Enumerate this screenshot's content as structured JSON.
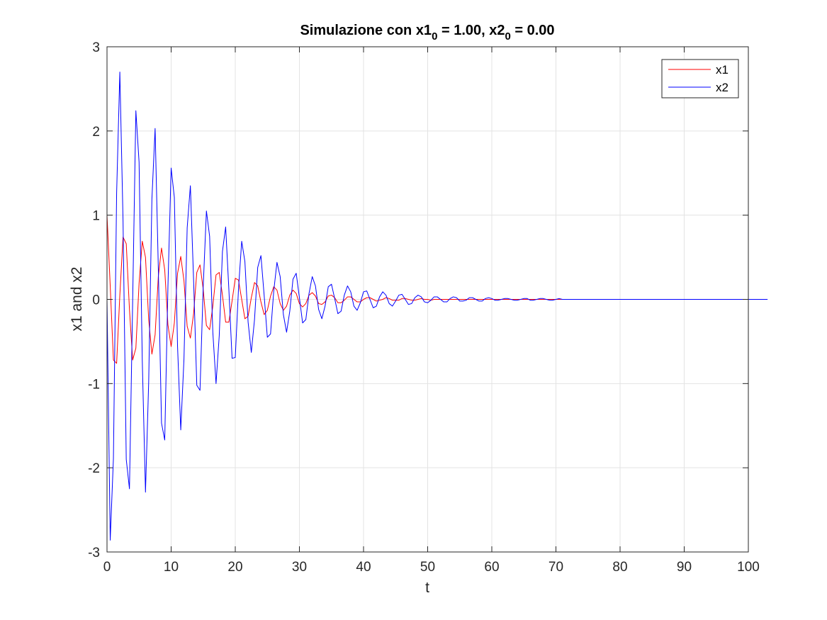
{
  "chart_data": {
    "type": "line",
    "title": {
      "prefix": "Simulazione con x1",
      "sub1": "0",
      "middle": " = 1.00, x2",
      "sub2": "0",
      "suffix": " = 0.00"
    },
    "xlabel": "t",
    "ylabel": "x1 and x2",
    "xlim": [
      0,
      100
    ],
    "ylim": [
      -3,
      3
    ],
    "xticks": [
      0,
      10,
      20,
      30,
      40,
      50,
      60,
      70,
      80,
      90,
      100
    ],
    "yticks": [
      -3,
      -2,
      -1,
      0,
      1,
      2,
      3
    ],
    "grid": true,
    "legend_position": "top-right",
    "x_sampling": {
      "start": 0,
      "end": 100,
      "step": 0.5
    },
    "series": [
      {
        "name": "x1",
        "color": "#ff0000",
        "values": [
          1.0,
          0.16,
          -0.72,
          -0.76,
          0.05,
          0.74,
          0.66,
          -0.12,
          -0.72,
          -0.58,
          0.19,
          0.69,
          0.5,
          -0.24,
          -0.65,
          -0.42,
          0.27,
          0.61,
          0.35,
          -0.3,
          -0.56,
          -0.28,
          0.31,
          0.51,
          0.22,
          -0.32,
          -0.46,
          -0.17,
          0.32,
          0.41,
          0.12,
          -0.31,
          -0.36,
          -0.08,
          0.29,
          0.32,
          0.05,
          -0.27,
          -0.27,
          -0.02,
          0.25,
          0.23,
          -0.0,
          -0.23,
          -0.2,
          0.02,
          0.2,
          0.16,
          -0.03,
          -0.18,
          -0.13,
          0.04,
          0.15,
          0.11,
          -0.05,
          -0.13,
          -0.08,
          0.05,
          0.11,
          0.07,
          -0.05,
          -0.09,
          -0.05,
          0.05,
          0.08,
          0.04,
          -0.05,
          -0.06,
          -0.03,
          0.04,
          0.05,
          0.02,
          -0.04,
          -0.04,
          -0.01,
          0.03,
          0.03,
          0.0,
          -0.03,
          -0.03,
          -0.0,
          0.02,
          0.02,
          0.0,
          -0.02,
          -0.01,
          0.0,
          0.02,
          0.01,
          -0.01,
          -0.01,
          -0.01,
          0.01,
          0.01,
          0.0,
          -0.01,
          -0.01,
          -0.0,
          0.01,
          0.0,
          -0.0,
          -0.01,
          -0.0,
          0.0,
          0.0,
          0.0,
          -0.0,
          -0.0,
          -0.0,
          0.0,
          0.0,
          0.0,
          -0.0,
          -0.0,
          0.0,
          0.0,
          0.0,
          -0.0,
          -0.0,
          -0.0,
          0.0,
          0.0,
          0.0,
          -0.0,
          -0.0,
          -0.0,
          0.0,
          0.0,
          -0.0,
          -0.0,
          -0.0,
          0.0,
          0.0,
          0.0,
          -0.0,
          -0.0,
          -0.0,
          0.0,
          0.0,
          -0.0,
          -0.0,
          -0.0,
          0.0,
          0.0,
          0.0,
          -0.0,
          -0.0,
          -0.0,
          0.0,
          0.0,
          -0.0,
          -0.0,
          -0.0,
          0.0,
          0.0,
          0.0,
          -0.0,
          -0.0,
          -0.0,
          0.0,
          0.0,
          -0.0,
          -0.0,
          -0.0,
          0.0,
          0.0,
          0.0,
          -0.0,
          -0.0,
          -0.0,
          0.0,
          0.0,
          -0.0,
          -0.0,
          -0.0,
          0.0,
          0.0,
          0.0,
          -0.0,
          -0.0,
          -0.0,
          0.0,
          0.0,
          -0.0,
          -0.0,
          -0.0,
          0.0,
          0.0,
          0.0,
          -0.0,
          -0.0,
          -0.0,
          0.0,
          0.0,
          -0.0,
          -0.0,
          -0.0,
          0.0
        ]
      },
      {
        "name": "x2",
        "color": "#0000ff",
        "values": [
          0.0,
          -2.86,
          -1.89,
          1.26,
          2.7,
          0.93,
          -1.9,
          -2.25,
          -0.02,
          2.24,
          1.63,
          -0.73,
          -2.29,
          -0.98,
          1.19,
          2.03,
          0.37,
          -1.47,
          -1.67,
          0.15,
          1.56,
          1.21,
          -0.56,
          -1.55,
          -0.71,
          0.85,
          1.35,
          0.23,
          -1.02,
          -1.08,
          0.15,
          1.05,
          0.75,
          -0.39,
          -1.0,
          -0.43,
          0.57,
          0.86,
          0.12,
          -0.7,
          -0.69,
          0.12,
          0.69,
          0.45,
          -0.27,
          -0.63,
          -0.24,
          0.38,
          0.52,
          0.05,
          -0.45,
          -0.41,
          0.1,
          0.44,
          0.27,
          -0.18,
          -0.39,
          -0.14,
          0.24,
          0.31,
          0.02,
          -0.28,
          -0.24,
          0.07,
          0.27,
          0.16,
          -0.12,
          -0.23,
          -0.08,
          0.15,
          0.18,
          0.01,
          -0.17,
          -0.14,
          0.05,
          0.16,
          0.09,
          -0.08,
          -0.13,
          -0.04,
          0.09,
          0.1,
          0.0,
          -0.1,
          -0.08,
          0.03,
          0.09,
          0.05,
          -0.05,
          -0.08,
          -0.02,
          0.05,
          0.06,
          0.0,
          -0.06,
          -0.05,
          0.02,
          0.05,
          0.03,
          -0.03,
          -0.04,
          -0.01,
          0.03,
          0.03,
          0.0,
          -0.03,
          -0.03,
          0.01,
          0.03,
          0.02,
          -0.02,
          -0.02,
          -0.01,
          0.02,
          0.02,
          0.0,
          -0.02,
          -0.02,
          0.01,
          0.02,
          0.01,
          -0.01,
          -0.01,
          -0.0,
          0.01,
          0.01,
          -0.0,
          -0.01,
          -0.01,
          0.0,
          0.01,
          0.01,
          -0.01,
          -0.01,
          -0.0,
          0.01,
          0.01,
          -0.0,
          -0.01,
          -0.01,
          0.0,
          0.01,
          0.0,
          -0.0,
          -0.0,
          -0.0,
          0.0,
          0.0,
          -0.0,
          -0.0,
          -0.0,
          0.0,
          0.0,
          0.0,
          -0.0,
          -0.0,
          -0.0,
          0.0,
          0.0,
          -0.0,
          -0.0,
          -0.0,
          0.0,
          0.0,
          0.0,
          -0.0,
          -0.0,
          -0.0,
          0.0,
          0.0,
          -0.0,
          -0.0,
          -0.0,
          0.0,
          0.0,
          0.0,
          -0.0,
          -0.0,
          -0.0,
          0.0,
          0.0,
          -0.0,
          -0.0,
          -0.0,
          0.0,
          0.0,
          0.0,
          -0.0,
          -0.0,
          -0.0,
          0.0,
          0.0,
          -0.0,
          -0.0,
          -0.0,
          0.0,
          0.0,
          0.0,
          -0.0,
          -0.0,
          -0.0,
          0.0,
          0.0,
          -0.0,
          -0.0,
          -0.0,
          0.0
        ]
      }
    ]
  }
}
